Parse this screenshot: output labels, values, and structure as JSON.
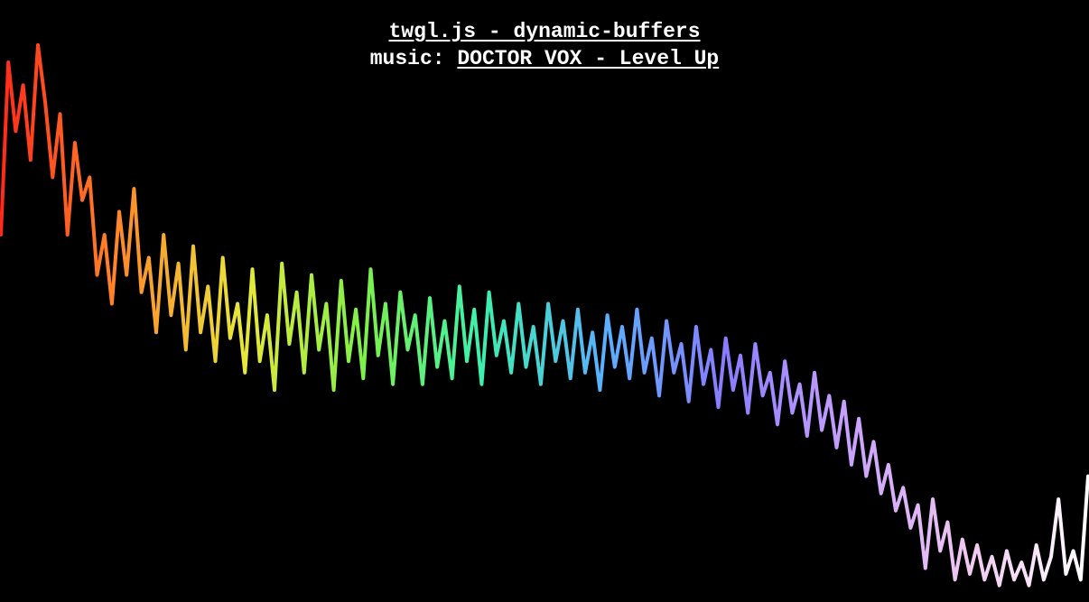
{
  "header": {
    "title_link": "twgl.js - dynamic-buffers",
    "music_label": "music: ",
    "music_link": "DOCTOR VOX - Level Up"
  },
  "visualizer": {
    "background": "#000000",
    "stroke_width": 4,
    "color_stops": [
      "#ff2a1a",
      "#ff8a2a",
      "#e8e83a",
      "#7ef04a",
      "#3cf0b0",
      "#5ab0ff",
      "#8a7cff",
      "#c8a0ff",
      "#f0c8f0",
      "#ffffff"
    ],
    "samples": [
      0.62,
      0.92,
      0.8,
      0.88,
      0.75,
      0.95,
      0.85,
      0.72,
      0.83,
      0.62,
      0.78,
      0.68,
      0.72,
      0.55,
      0.62,
      0.5,
      0.66,
      0.55,
      0.7,
      0.52,
      0.58,
      0.45,
      0.62,
      0.48,
      0.57,
      0.42,
      0.6,
      0.45,
      0.53,
      0.4,
      0.58,
      0.44,
      0.5,
      0.38,
      0.56,
      0.4,
      0.48,
      0.35,
      0.57,
      0.43,
      0.52,
      0.38,
      0.55,
      0.42,
      0.5,
      0.35,
      0.54,
      0.4,
      0.49,
      0.37,
      0.56,
      0.41,
      0.5,
      0.36,
      0.52,
      0.42,
      0.48,
      0.36,
      0.51,
      0.39,
      0.47,
      0.37,
      0.53,
      0.4,
      0.49,
      0.36,
      0.52,
      0.41,
      0.47,
      0.38,
      0.5,
      0.39,
      0.46,
      0.36,
      0.5,
      0.4,
      0.47,
      0.37,
      0.49,
      0.38,
      0.45,
      0.35,
      0.48,
      0.39,
      0.46,
      0.37,
      0.49,
      0.38,
      0.44,
      0.34,
      0.47,
      0.38,
      0.43,
      0.33,
      0.46,
      0.36,
      0.42,
      0.32,
      0.44,
      0.35,
      0.41,
      0.31,
      0.43,
      0.34,
      0.38,
      0.29,
      0.4,
      0.31,
      0.36,
      0.27,
      0.38,
      0.28,
      0.34,
      0.25,
      0.33,
      0.22,
      0.3,
      0.2,
      0.26,
      0.17,
      0.22,
      0.14,
      0.18,
      0.11,
      0.15,
      0.04,
      0.16,
      0.07,
      0.12,
      0.02,
      0.09,
      0.03,
      0.08,
      0.02,
      0.06,
      0.01,
      0.07,
      0.02,
      0.05,
      0.01,
      0.08,
      0.02,
      0.06,
      0.16,
      0.03,
      0.07,
      0.02,
      0.2
    ]
  }
}
